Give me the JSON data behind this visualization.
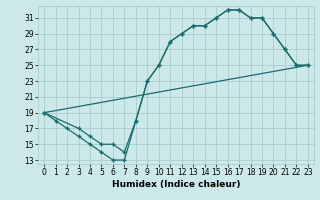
{
  "xlabel": "Humidex (Indice chaleur)",
  "bg_color": "#cce8e8",
  "grid_color": "#aacccc",
  "line_color": "#1a6b6b",
  "xlim": [
    -0.5,
    23.5
  ],
  "ylim": [
    12.5,
    32.5
  ],
  "xticks": [
    0,
    1,
    2,
    3,
    4,
    5,
    6,
    7,
    8,
    9,
    10,
    11,
    12,
    13,
    14,
    15,
    16,
    17,
    18,
    19,
    20,
    21,
    22,
    23
  ],
  "yticks": [
    13,
    15,
    17,
    19,
    21,
    23,
    25,
    27,
    29,
    31
  ],
  "line1": {
    "x": [
      0,
      1,
      2,
      3,
      4,
      5,
      6,
      7,
      8,
      9,
      10,
      11,
      12,
      13,
      14,
      15,
      16,
      17,
      18,
      19,
      20,
      21,
      22,
      23
    ],
    "y": [
      19,
      18,
      17,
      16,
      15,
      14,
      13,
      13,
      18,
      23,
      25,
      28,
      29,
      30,
      30,
      31,
      32,
      32,
      31,
      31,
      29,
      27,
      25,
      25
    ]
  },
  "line2": {
    "x": [
      0,
      3,
      4,
      5,
      6,
      7,
      8,
      9,
      10,
      11,
      12,
      13,
      14,
      15,
      16,
      17,
      18,
      19,
      20,
      21,
      22,
      23
    ],
    "y": [
      19,
      17,
      16,
      15,
      15,
      14,
      18,
      23,
      25,
      28,
      29,
      30,
      30,
      31,
      32,
      32,
      31,
      31,
      29,
      27,
      25,
      25
    ]
  },
  "line3": {
    "x": [
      0,
      23
    ],
    "y": [
      19,
      25
    ]
  },
  "tick_fontsize": 5.5,
  "xlabel_fontsize": 6.5
}
